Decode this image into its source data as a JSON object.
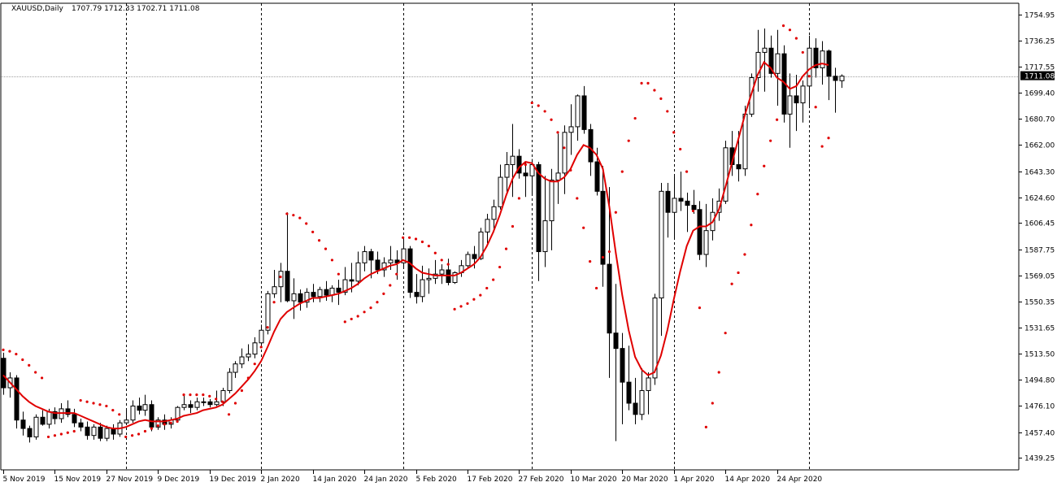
{
  "window": {
    "symbol_label": "XAUUSD,Daily",
    "ohlc_label": "1707.79 1712.33 1702.71 1711.08"
  },
  "colors": {
    "background": "#ffffff",
    "axis": "#000000",
    "grid_separator": "#000000",
    "bull_body": "#ffffff",
    "bear_body": "#000000",
    "wick": "#000000",
    "ma_line": "#e00000",
    "sar_dots": "#e00000",
    "price_line": "#a0a0a0",
    "price_tag_bg": "#000000",
    "price_tag_text": "#ffffff"
  },
  "chart_data": {
    "type": "candlestick",
    "title": "XAUUSD,Daily",
    "ohlc_readout": "1707.79 1712.33 1702.71 1711.08",
    "current_price": 1711.08,
    "current_price_label": "1711.08",
    "ylim": [
      1430.5,
      1763.0
    ],
    "y_ticks": [
      "1754.95",
      "1736.25",
      "1717.55",
      "1699.40",
      "1680.70",
      "1662.00",
      "1643.30",
      "1624.60",
      "1606.45",
      "1587.75",
      "1569.05",
      "1550.35",
      "1531.65",
      "1513.50",
      "1494.80",
      "1476.10",
      "1457.40",
      "1439.25"
    ],
    "x_ticks": [
      {
        "i": 0,
        "label": "5 Nov 2019"
      },
      {
        "i": 8,
        "label": "15 Nov 2019"
      },
      {
        "i": 16,
        "label": "27 Nov 2019"
      },
      {
        "i": 24,
        "label": "9 Dec 2019"
      },
      {
        "i": 32,
        "label": "19 Dec 2019"
      },
      {
        "i": 40,
        "label": "2 Jan 2020"
      },
      {
        "i": 48,
        "label": "14 Jan 2020"
      },
      {
        "i": 56,
        "label": "24 Jan 2020"
      },
      {
        "i": 64,
        "label": "5 Feb 2020"
      },
      {
        "i": 72,
        "label": "17 Feb 2020"
      },
      {
        "i": 80,
        "label": "27 Feb 2020"
      },
      {
        "i": 88,
        "label": "10 Mar 2020"
      },
      {
        "i": 96,
        "label": "20 Mar 2020"
      },
      {
        "i": 104,
        "label": "1 Apr 2020"
      },
      {
        "i": 112,
        "label": "14 Apr 2020"
      },
      {
        "i": 120,
        "label": "24 Apr 2020"
      }
    ],
    "separators": [
      19,
      40,
      62,
      82,
      104,
      125
    ],
    "candles": [
      [
        1510,
        1514,
        1484,
        1489
      ],
      [
        1489,
        1500,
        1482,
        1496
      ],
      [
        1496,
        1498,
        1460,
        1466
      ],
      [
        1466,
        1472,
        1455,
        1460
      ],
      [
        1460,
        1462,
        1450,
        1454
      ],
      [
        1454,
        1470,
        1452,
        1468
      ],
      [
        1468,
        1473,
        1462,
        1463
      ],
      [
        1463,
        1474,
        1460,
        1472
      ],
      [
        1472,
        1475,
        1463,
        1467
      ],
      [
        1467,
        1478,
        1464,
        1474
      ],
      [
        1474,
        1480,
        1468,
        1470
      ],
      [
        1470,
        1474,
        1461,
        1464
      ],
      [
        1464,
        1467,
        1458,
        1461
      ],
      [
        1461,
        1465,
        1452,
        1455
      ],
      [
        1455,
        1463,
        1452,
        1461
      ],
      [
        1461,
        1464,
        1451,
        1453
      ],
      [
        1453,
        1462,
        1451,
        1460
      ],
      [
        1460,
        1463,
        1452,
        1456
      ],
      [
        1456,
        1466,
        1454,
        1464
      ],
      [
        1464,
        1474,
        1463,
        1466
      ],
      [
        1466,
        1480,
        1464,
        1476
      ],
      [
        1476,
        1482,
        1470,
        1473
      ],
      [
        1473,
        1484,
        1469,
        1477
      ],
      [
        1477,
        1480,
        1458,
        1461
      ],
      [
        1461,
        1468,
        1459,
        1466
      ],
      [
        1466,
        1470,
        1459,
        1463
      ],
      [
        1463,
        1468,
        1460,
        1466
      ],
      [
        1466,
        1476,
        1465,
        1475
      ],
      [
        1475,
        1484,
        1473,
        1477
      ],
      [
        1477,
        1480,
        1471,
        1475
      ],
      [
        1475,
        1482,
        1473,
        1479
      ],
      [
        1479,
        1482,
        1476,
        1479
      ],
      [
        1479,
        1481,
        1475,
        1477
      ],
      [
        1477,
        1487,
        1476,
        1479
      ],
      [
        1479,
        1489,
        1476,
        1487
      ],
      [
        1487,
        1503,
        1485,
        1500
      ],
      [
        1500,
        1508,
        1496,
        1506
      ],
      [
        1506,
        1517,
        1503,
        1511
      ],
      [
        1511,
        1520,
        1508,
        1513
      ],
      [
        1513,
        1525,
        1510,
        1521
      ],
      [
        1521,
        1534,
        1519,
        1530
      ],
      [
        1530,
        1558,
        1527,
        1556
      ],
      [
        1556,
        1573,
        1553,
        1561
      ],
      [
        1561,
        1578,
        1550,
        1572
      ],
      [
        1572,
        1614,
        1550,
        1551
      ],
      [
        1551,
        1567,
        1538,
        1556
      ],
      [
        1556,
        1559,
        1544,
        1550
      ],
      [
        1550,
        1560,
        1546,
        1557
      ],
      [
        1557,
        1563,
        1550,
        1554
      ],
      [
        1554,
        1561,
        1550,
        1559
      ],
      [
        1559,
        1565,
        1551,
        1555
      ],
      [
        1555,
        1562,
        1550,
        1560
      ],
      [
        1560,
        1566,
        1548,
        1557
      ],
      [
        1557,
        1575,
        1555,
        1566
      ],
      [
        1566,
        1578,
        1557,
        1565
      ],
      [
        1565,
        1586,
        1562,
        1578
      ],
      [
        1578,
        1590,
        1572,
        1586
      ],
      [
        1586,
        1588,
        1567,
        1580
      ],
      [
        1580,
        1586,
        1570,
        1573
      ],
      [
        1573,
        1582,
        1568,
        1578
      ],
      [
        1578,
        1590,
        1573,
        1580
      ],
      [
        1580,
        1587,
        1566,
        1578
      ],
      [
        1578,
        1596,
        1575,
        1588
      ],
      [
        1588,
        1590,
        1553,
        1557
      ],
      [
        1557,
        1570,
        1549,
        1554
      ],
      [
        1554,
        1576,
        1550,
        1566
      ],
      [
        1566,
        1574,
        1556,
        1567
      ],
      [
        1567,
        1580,
        1563,
        1570
      ],
      [
        1570,
        1577,
        1563,
        1573
      ],
      [
        1573,
        1581,
        1562,
        1564
      ],
      [
        1564,
        1572,
        1563,
        1571
      ],
      [
        1571,
        1580,
        1568,
        1576
      ],
      [
        1576,
        1586,
        1574,
        1584
      ],
      [
        1584,
        1590,
        1574,
        1581
      ],
      [
        1581,
        1603,
        1580,
        1600
      ],
      [
        1600,
        1613,
        1592,
        1609
      ],
      [
        1609,
        1623,
        1600,
        1618
      ],
      [
        1618,
        1648,
        1616,
        1639
      ],
      [
        1639,
        1657,
        1628,
        1648
      ],
      [
        1648,
        1677,
        1625,
        1654
      ],
      [
        1654,
        1659,
        1638,
        1642
      ],
      [
        1642,
        1650,
        1625,
        1640
      ],
      [
        1640,
        1652,
        1626,
        1648
      ],
      [
        1648,
        1650,
        1565,
        1586
      ],
      [
        1586,
        1640,
        1575,
        1608
      ],
      [
        1608,
        1645,
        1587,
        1637
      ],
      [
        1637,
        1670,
        1620,
        1642
      ],
      [
        1642,
        1676,
        1627,
        1671
      ],
      [
        1671,
        1691,
        1655,
        1675
      ],
      [
        1675,
        1698,
        1665,
        1697
      ],
      [
        1697,
        1704,
        1670,
        1673
      ],
      [
        1673,
        1677,
        1640,
        1650
      ],
      [
        1650,
        1660,
        1626,
        1629
      ],
      [
        1629,
        1647,
        1561,
        1577
      ],
      [
        1577,
        1632,
        1496,
        1528
      ],
      [
        1528,
        1563,
        1451,
        1517
      ],
      [
        1517,
        1528,
        1463,
        1493
      ],
      [
        1493,
        1519,
        1473,
        1478
      ],
      [
        1478,
        1496,
        1463,
        1470
      ],
      [
        1470,
        1503,
        1466,
        1487
      ],
      [
        1487,
        1500,
        1470,
        1496
      ],
      [
        1496,
        1556,
        1491,
        1553
      ],
      [
        1553,
        1635,
        1526,
        1629
      ],
      [
        1629,
        1635,
        1596,
        1614
      ],
      [
        1614,
        1641,
        1596,
        1624
      ],
      [
        1624,
        1643,
        1615,
        1622
      ],
      [
        1622,
        1628,
        1600,
        1619
      ],
      [
        1619,
        1630,
        1613,
        1616
      ],
      [
        1616,
        1622,
        1580,
        1584
      ],
      [
        1584,
        1620,
        1575,
        1601
      ],
      [
        1601,
        1624,
        1594,
        1614
      ],
      [
        1614,
        1631,
        1608,
        1622
      ],
      [
        1622,
        1665,
        1620,
        1660
      ],
      [
        1660,
        1672,
        1640,
        1648
      ],
      [
        1648,
        1672,
        1636,
        1645
      ],
      [
        1645,
        1690,
        1640,
        1684
      ],
      [
        1684,
        1713,
        1682,
        1710
      ],
      [
        1710,
        1744,
        1700,
        1728
      ],
      [
        1728,
        1745,
        1700,
        1731
      ],
      [
        1731,
        1740,
        1710,
        1713
      ],
      [
        1713,
        1744,
        1690,
        1727
      ],
      [
        1727,
        1733,
        1678,
        1684
      ],
      [
        1684,
        1713,
        1660,
        1697
      ],
      [
        1697,
        1712,
        1672,
        1692
      ],
      [
        1692,
        1708,
        1678,
        1704
      ],
      [
        1704,
        1740,
        1690,
        1731
      ],
      [
        1731,
        1738,
        1710,
        1717
      ],
      [
        1717,
        1736,
        1705,
        1729
      ],
      [
        1729,
        1730,
        1694,
        1711
      ],
      [
        1711,
        1717,
        1685,
        1708
      ],
      [
        1707.79,
        1712.33,
        1702.71,
        1711.08
      ]
    ],
    "moving_average": [
      1498,
      1493,
      1488,
      1483,
      1479,
      1476,
      1474,
      1472,
      1471,
      1471,
      1471,
      1471,
      1469,
      1467,
      1465,
      1463,
      1461,
      1460,
      1460,
      1461,
      1463,
      1465,
      1466,
      1465,
      1465,
      1465,
      1466,
      1467,
      1469,
      1470,
      1471,
      1473,
      1474,
      1475,
      1477,
      1481,
      1485,
      1490,
      1495,
      1501,
      1508,
      1518,
      1529,
      1538,
      1543,
      1546,
      1549,
      1551,
      1553,
      1553,
      1554,
      1555,
      1556,
      1558,
      1560,
      1563,
      1567,
      1570,
      1572,
      1574,
      1576,
      1577,
      1580,
      1578,
      1574,
      1571,
      1570,
      1569,
      1569,
      1569,
      1569,
      1571,
      1574,
      1577,
      1582,
      1590,
      1600,
      1612,
      1626,
      1638,
      1646,
      1650,
      1649,
      1642,
      1638,
      1636,
      1636,
      1639,
      1645,
      1655,
      1662,
      1660,
      1655,
      1645,
      1618,
      1585,
      1555,
      1530,
      1511,
      1502,
      1498,
      1500,
      1512,
      1530,
      1552,
      1572,
      1590,
      1601,
      1604,
      1604,
      1607,
      1616,
      1632,
      1649,
      1666,
      1683,
      1698,
      1712,
      1721,
      1717,
      1710,
      1707,
      1702,
      1704,
      1711,
      1716,
      1719,
      1720,
      1719
    ],
    "sar": [
      1516,
      1515,
      1513,
      1509,
      1505,
      1500,
      1496,
      1454,
      1455,
      1456,
      1457,
      1458,
      1480,
      1479,
      1478,
      1477,
      1476,
      1473,
      1470,
      1454,
      1455,
      1456,
      1458,
      1460,
      1462,
      1463,
      1464,
      1465,
      1484,
      1484,
      1484,
      1484,
      1483,
      1481,
      1479,
      1470,
      1478,
      1487,
      1496,
      1506,
      1518,
      1532,
      1550,
      1568,
      1613,
      1612,
      1610,
      1606,
      1600,
      1594,
      1588,
      1580,
      1570,
      1536,
      1538,
      1540,
      1543,
      1546,
      1550,
      1556,
      1562,
      1570,
      1596,
      1596,
      1595,
      1593,
      1590,
      1585,
      1580,
      1577,
      1545,
      1547,
      1549,
      1552,
      1555,
      1560,
      1566,
      1575,
      1588,
      1604,
      1624,
      1648,
      1692,
      1690,
      1686,
      1680,
      1671,
      1660,
      1644,
      1624,
      1603,
      1579,
      1560,
      1582,
      1586,
      1614,
      1643,
      1665,
      1681,
      1706,
      1706,
      1701,
      1695,
      1686,
      1671,
      1659,
      1643,
      1615,
      1546,
      1461,
      1478,
      1500,
      1528,
      1563,
      1571,
      1584,
      1605,
      1627,
      1647,
      1665,
      1680,
      1747,
      1744,
      1738,
      1728,
      1711,
      1689,
      1661,
      1667
    ]
  }
}
